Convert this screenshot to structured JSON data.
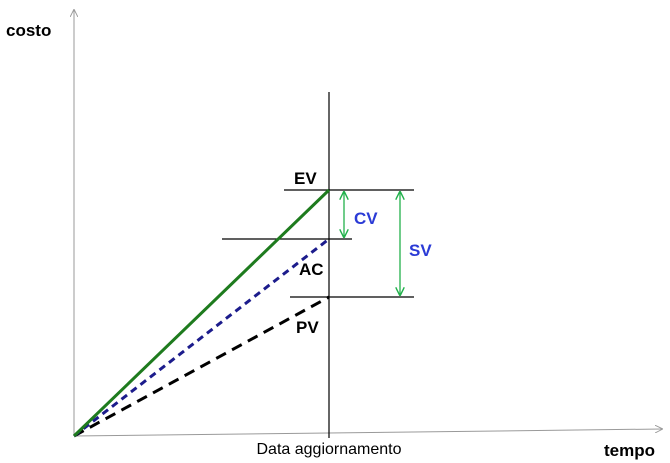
{
  "axes": {
    "y_label": "costo",
    "x_label": "tempo",
    "marker_label": "Data aggiornamento"
  },
  "series": {
    "ev": {
      "label": "EV",
      "color": "#1e7b1e"
    },
    "ac": {
      "label": "AC",
      "color": "#1c1c8c"
    },
    "pv": {
      "label": "PV",
      "color": "#000000"
    }
  },
  "variances": {
    "cv": {
      "label": "CV",
      "label_color": "#2b3bd6",
      "arrow_color": "#22b14c"
    },
    "sv": {
      "label": "SV",
      "label_color": "#2b3bd6",
      "arrow_color": "#22b14c"
    }
  },
  "axis_color": "#9a9a9a",
  "line_color": "#000000"
}
